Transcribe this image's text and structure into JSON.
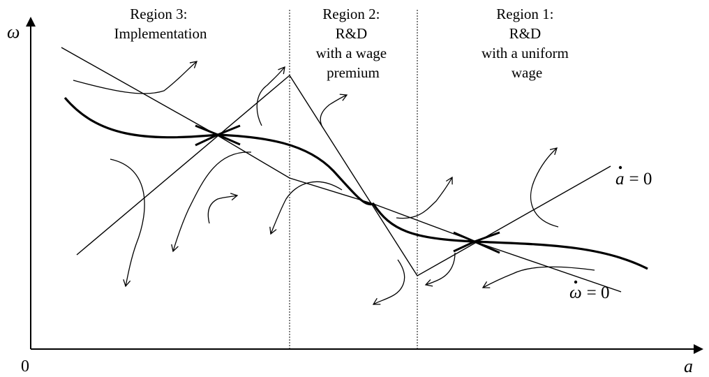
{
  "regions": [
    {
      "title": "Region 3:",
      "desc": [
        "Implementation"
      ]
    },
    {
      "title": "Region 2:",
      "desc": [
        "R&D",
        "with a wage",
        "premium"
      ]
    },
    {
      "title": "Region 1:",
      "desc": [
        "R&D",
        "with a uniform",
        "wage"
      ]
    }
  ],
  "axes": {
    "y_label": "ω",
    "x_label": "a",
    "origin_label": "0"
  },
  "loci": {
    "a_dot": {
      "var": "a",
      "rhs": "= 0"
    },
    "omega_dot": {
      "var": "ω",
      "rhs": "= 0"
    }
  },
  "colors": {
    "ink": "#000000",
    "background": "#ffffff"
  }
}
